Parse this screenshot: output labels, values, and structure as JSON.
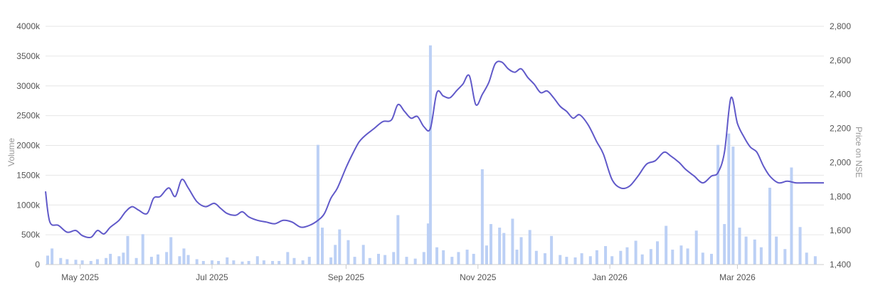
{
  "chart_data": {
    "type": "bar+line",
    "title": "",
    "xlabel": "",
    "ylabel_left": "Volume",
    "ylabel_right": "Price on NSE",
    "x_ticks": [
      "May 2025",
      "Jul 2025",
      "Sep 2025",
      "Nov 2025",
      "Jan 2026",
      "Mar 2026"
    ],
    "x_range": [
      "2025-04-15",
      "2026-04-10"
    ],
    "y_left_ticks": [
      "0",
      "500k",
      "1000k",
      "1500k",
      "2000k",
      "2500k",
      "3000k",
      "3500k",
      "4000k"
    ],
    "y_left_range": [
      0,
      4000
    ],
    "y_left_unit": "thousands",
    "y_right_ticks": [
      "1,400",
      "1,600",
      "1,800",
      "2,000",
      "2,200",
      "2,400",
      "2,600",
      "2,800"
    ],
    "y_right_range": [
      1400,
      2800
    ],
    "grid": true,
    "colors": {
      "volume": "#bcd0f5",
      "price": "#6059c9",
      "grid": "#e6e6e6",
      "axis": "#cccccc"
    },
    "series": [
      {
        "name": "Price on NSE",
        "kind": "line",
        "points": [
          [
            "2025-04-15",
            1830
          ],
          [
            "2025-04-17",
            1650
          ],
          [
            "2025-04-21",
            1630
          ],
          [
            "2025-04-25",
            1590
          ],
          [
            "2025-04-29",
            1600
          ],
          [
            "2025-05-02",
            1570
          ],
          [
            "2025-05-06",
            1560
          ],
          [
            "2025-05-09",
            1600
          ],
          [
            "2025-05-12",
            1580
          ],
          [
            "2025-05-15",
            1620
          ],
          [
            "2025-05-19",
            1660
          ],
          [
            "2025-05-22",
            1710
          ],
          [
            "2025-05-25",
            1740
          ],
          [
            "2025-05-28",
            1720
          ],
          [
            "2025-06-01",
            1700
          ],
          [
            "2025-06-04",
            1790
          ],
          [
            "2025-06-07",
            1800
          ],
          [
            "2025-06-11",
            1850
          ],
          [
            "2025-06-14",
            1800
          ],
          [
            "2025-06-17",
            1900
          ],
          [
            "2025-06-20",
            1850
          ],
          [
            "2025-06-24",
            1770
          ],
          [
            "2025-06-28",
            1740
          ],
          [
            "2025-07-02",
            1760
          ],
          [
            "2025-07-05",
            1730
          ],
          [
            "2025-07-08",
            1700
          ],
          [
            "2025-07-12",
            1690
          ],
          [
            "2025-07-15",
            1710
          ],
          [
            "2025-07-18",
            1680
          ],
          [
            "2025-07-22",
            1660
          ],
          [
            "2025-07-26",
            1650
          ],
          [
            "2025-07-30",
            1640
          ],
          [
            "2025-08-03",
            1660
          ],
          [
            "2025-08-07",
            1650
          ],
          [
            "2025-08-11",
            1620
          ],
          [
            "2025-08-15",
            1630
          ],
          [
            "2025-08-19",
            1660
          ],
          [
            "2025-08-22",
            1700
          ],
          [
            "2025-08-25",
            1790
          ],
          [
            "2025-08-28",
            1850
          ],
          [
            "2025-09-01",
            1970
          ],
          [
            "2025-09-04",
            2050
          ],
          [
            "2025-09-07",
            2120
          ],
          [
            "2025-09-10",
            2160
          ],
          [
            "2025-09-14",
            2200
          ],
          [
            "2025-09-18",
            2240
          ],
          [
            "2025-09-22",
            2250
          ],
          [
            "2025-09-25",
            2340
          ],
          [
            "2025-09-28",
            2300
          ],
          [
            "2025-10-01",
            2260
          ],
          [
            "2025-10-04",
            2270
          ],
          [
            "2025-10-07",
            2210
          ],
          [
            "2025-10-10",
            2200
          ],
          [
            "2025-10-13",
            2410
          ],
          [
            "2025-10-16",
            2390
          ],
          [
            "2025-10-19",
            2380
          ],
          [
            "2025-10-22",
            2420
          ],
          [
            "2025-10-25",
            2460
          ],
          [
            "2025-10-28",
            2510
          ],
          [
            "2025-10-31",
            2340
          ],
          [
            "2025-11-03",
            2400
          ],
          [
            "2025-11-06",
            2470
          ],
          [
            "2025-11-09",
            2580
          ],
          [
            "2025-11-12",
            2590
          ],
          [
            "2025-11-15",
            2550
          ],
          [
            "2025-11-18",
            2530
          ],
          [
            "2025-11-21",
            2550
          ],
          [
            "2025-11-24",
            2500
          ],
          [
            "2025-11-27",
            2460
          ],
          [
            "2025-11-30",
            2410
          ],
          [
            "2025-12-03",
            2420
          ],
          [
            "2025-12-06",
            2380
          ],
          [
            "2025-12-09",
            2330
          ],
          [
            "2025-12-12",
            2300
          ],
          [
            "2025-12-15",
            2260
          ],
          [
            "2025-12-18",
            2280
          ],
          [
            "2025-12-22",
            2220
          ],
          [
            "2025-12-26",
            2120
          ],
          [
            "2025-12-29",
            2050
          ],
          [
            "2026-01-02",
            1900
          ],
          [
            "2026-01-06",
            1850
          ],
          [
            "2026-01-10",
            1860
          ],
          [
            "2026-01-14",
            1920
          ],
          [
            "2026-01-18",
            1990
          ],
          [
            "2026-01-22",
            2010
          ],
          [
            "2026-01-26",
            2060
          ],
          [
            "2026-01-29",
            2040
          ],
          [
            "2026-02-02",
            2000
          ],
          [
            "2026-02-05",
            1960
          ],
          [
            "2026-02-09",
            1920
          ],
          [
            "2026-02-13",
            1880
          ],
          [
            "2026-02-17",
            1920
          ],
          [
            "2026-02-20",
            1940
          ],
          [
            "2026-02-23",
            2060
          ],
          [
            "2026-02-26",
            2380
          ],
          [
            "2026-03-01",
            2230
          ],
          [
            "2026-03-04",
            2150
          ],
          [
            "2026-03-07",
            2090
          ],
          [
            "2026-03-10",
            2060
          ],
          [
            "2026-03-13",
            1980
          ],
          [
            "2026-03-16",
            1920
          ],
          [
            "2026-03-20",
            1880
          ],
          [
            "2026-03-24",
            1890
          ],
          [
            "2026-03-28",
            1880
          ],
          [
            "2026-04-01",
            1880
          ],
          [
            "2026-04-05",
            1880
          ],
          [
            "2026-04-08",
            1880
          ],
          [
            "2026-04-10",
            1880
          ]
        ]
      },
      {
        "name": "Volume",
        "kind": "bar",
        "points": [
          [
            "2025-04-16",
            150
          ],
          [
            "2025-04-18",
            270
          ],
          [
            "2025-04-22",
            110
          ],
          [
            "2025-04-25",
            90
          ],
          [
            "2025-04-29",
            80
          ],
          [
            "2025-05-02",
            70
          ],
          [
            "2025-05-06",
            60
          ],
          [
            "2025-05-09",
            90
          ],
          [
            "2025-05-13",
            110
          ],
          [
            "2025-05-15",
            180
          ],
          [
            "2025-05-19",
            140
          ],
          [
            "2025-05-21",
            200
          ],
          [
            "2025-05-23",
            480
          ],
          [
            "2025-05-27",
            110
          ],
          [
            "2025-05-30",
            510
          ],
          [
            "2025-06-03",
            130
          ],
          [
            "2025-06-06",
            170
          ],
          [
            "2025-06-10",
            210
          ],
          [
            "2025-06-12",
            460
          ],
          [
            "2025-06-16",
            140
          ],
          [
            "2025-06-18",
            270
          ],
          [
            "2025-06-20",
            160
          ],
          [
            "2025-06-24",
            90
          ],
          [
            "2025-06-27",
            60
          ],
          [
            "2025-07-01",
            70
          ],
          [
            "2025-07-04",
            60
          ],
          [
            "2025-07-08",
            120
          ],
          [
            "2025-07-11",
            70
          ],
          [
            "2025-07-15",
            50
          ],
          [
            "2025-07-18",
            60
          ],
          [
            "2025-07-22",
            140
          ],
          [
            "2025-07-25",
            70
          ],
          [
            "2025-07-29",
            60
          ],
          [
            "2025-08-01",
            60
          ],
          [
            "2025-08-05",
            210
          ],
          [
            "2025-08-08",
            110
          ],
          [
            "2025-08-12",
            70
          ],
          [
            "2025-08-15",
            130
          ],
          [
            "2025-08-19",
            2010
          ],
          [
            "2025-08-21",
            620
          ],
          [
            "2025-08-25",
            120
          ],
          [
            "2025-08-27",
            330
          ],
          [
            "2025-08-29",
            590
          ],
          [
            "2025-09-02",
            410
          ],
          [
            "2025-09-05",
            130
          ],
          [
            "2025-09-09",
            330
          ],
          [
            "2025-09-12",
            110
          ],
          [
            "2025-09-16",
            180
          ],
          [
            "2025-09-19",
            160
          ],
          [
            "2025-09-23",
            210
          ],
          [
            "2025-09-25",
            830
          ],
          [
            "2025-09-29",
            130
          ],
          [
            "2025-10-03",
            100
          ],
          [
            "2025-10-07",
            210
          ],
          [
            "2025-10-09",
            690
          ],
          [
            "2025-10-10",
            3680
          ],
          [
            "2025-10-13",
            290
          ],
          [
            "2025-10-16",
            240
          ],
          [
            "2025-10-20",
            130
          ],
          [
            "2025-10-23",
            210
          ],
          [
            "2025-10-27",
            250
          ],
          [
            "2025-10-30",
            180
          ],
          [
            "2025-11-03",
            1600
          ],
          [
            "2025-11-05",
            320
          ],
          [
            "2025-11-07",
            680
          ],
          [
            "2025-11-11",
            620
          ],
          [
            "2025-11-13",
            530
          ],
          [
            "2025-11-17",
            770
          ],
          [
            "2025-11-19",
            250
          ],
          [
            "2025-11-21",
            460
          ],
          [
            "2025-11-25",
            580
          ],
          [
            "2025-11-28",
            230
          ],
          [
            "2025-12-02",
            190
          ],
          [
            "2025-12-05",
            480
          ],
          [
            "2025-12-09",
            160
          ],
          [
            "2025-12-12",
            130
          ],
          [
            "2025-12-16",
            120
          ],
          [
            "2025-12-19",
            190
          ],
          [
            "2025-12-23",
            140
          ],
          [
            "2025-12-26",
            240
          ],
          [
            "2025-12-30",
            310
          ],
          [
            "2026-01-02",
            140
          ],
          [
            "2026-01-06",
            230
          ],
          [
            "2026-01-09",
            290
          ],
          [
            "2026-01-13",
            400
          ],
          [
            "2026-01-16",
            170
          ],
          [
            "2026-01-20",
            260
          ],
          [
            "2026-01-23",
            390
          ],
          [
            "2026-01-27",
            650
          ],
          [
            "2026-01-30",
            250
          ],
          [
            "2026-02-03",
            320
          ],
          [
            "2026-02-06",
            270
          ],
          [
            "2026-02-10",
            570
          ],
          [
            "2026-02-13",
            200
          ],
          [
            "2026-02-17",
            180
          ],
          [
            "2026-02-20",
            2010
          ],
          [
            "2026-02-23",
            680
          ],
          [
            "2026-02-25",
            2200
          ],
          [
            "2026-02-27",
            1980
          ],
          [
            "2026-03-02",
            620
          ],
          [
            "2026-03-05",
            470
          ],
          [
            "2026-03-09",
            420
          ],
          [
            "2026-03-12",
            290
          ],
          [
            "2026-03-16",
            1290
          ],
          [
            "2026-03-19",
            470
          ],
          [
            "2026-03-23",
            260
          ],
          [
            "2026-03-26",
            1630
          ],
          [
            "2026-03-30",
            630
          ],
          [
            "2026-04-02",
            200
          ],
          [
            "2026-04-06",
            140
          ]
        ]
      }
    ]
  }
}
